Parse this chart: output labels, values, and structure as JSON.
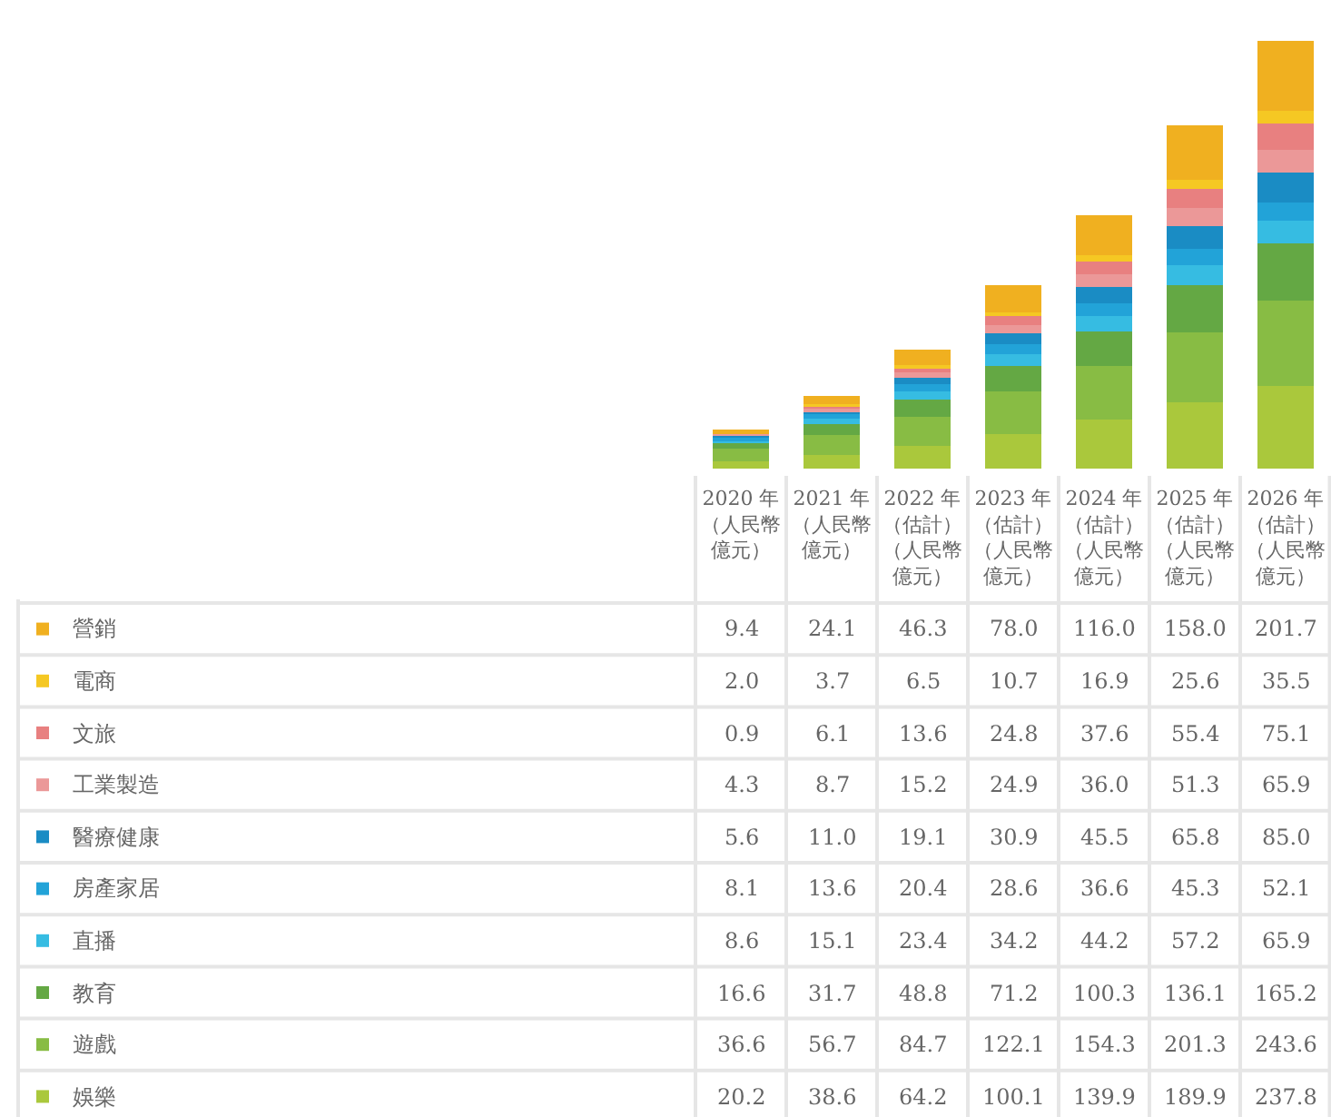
{
  "chart_data": {
    "type": "bar",
    "stacked": true,
    "legend": "bottom left",
    "tick_labels": "x",
    "categories": [
      "2020 年（人民幣億元）",
      "2021 年（人民幣億元）",
      "2022 年（估計）（人民幣億元）",
      "2023 年（估計）（人民幣億元）",
      "2024 年（估計）（人民幣億元）",
      "2025 年（估計）（人民幣億元）",
      "2026 年（估計）（人民幣億元）"
    ],
    "series": [
      {
        "name": "娛樂",
        "color": "#aac83c",
        "values": [
          20.2,
          38.6,
          64.2,
          100.1,
          139.9,
          189.9,
          237.8
        ],
        "value_labels": [
          "20.2",
          "38.6",
          "64.2",
          "100.1",
          "139.9",
          "189.9",
          "237.8"
        ]
      },
      {
        "name": "遊戲",
        "color": "#88bc44",
        "values": [
          36.6,
          56.7,
          84.7,
          122.1,
          154.3,
          201.3,
          243.6
        ],
        "value_labels": [
          "36.6",
          "56.7",
          "84.7",
          "122.1",
          "154.3",
          "201.3",
          "243.6"
        ]
      },
      {
        "name": "教育",
        "color": "#64a844",
        "values": [
          16.6,
          31.7,
          48.8,
          71.2,
          100.3,
          136.1,
          165.2
        ],
        "value_labels": [
          "16.6",
          "31.7",
          "48.8",
          "71.2",
          "100.3",
          "136.1",
          "165.2"
        ]
      },
      {
        "name": "直播",
        "color": "#36bce2",
        "values": [
          8.6,
          15.1,
          23.4,
          34.2,
          44.2,
          57.2,
          65.9
        ],
        "value_labels": [
          "8.6",
          "15.1",
          "23.4",
          "34.2",
          "44.2",
          "57.2",
          "65.9"
        ]
      },
      {
        "name": "房產家居",
        "color": "#22a3d8",
        "values": [
          8.1,
          13.6,
          20.4,
          28.6,
          36.6,
          45.3,
          52.1
        ],
        "value_labels": [
          "8.1",
          "13.6",
          "20.4",
          "28.6",
          "36.6",
          "45.3",
          "52.1"
        ]
      },
      {
        "name": "醫療健康",
        "color": "#1a8cc4",
        "values": [
          5.6,
          11.0,
          19.1,
          30.9,
          45.5,
          65.8,
          85.0
        ],
        "value_labels": [
          "5.6",
          "11.0",
          "19.1",
          "30.9",
          "45.5",
          "65.8",
          "85.0"
        ]
      },
      {
        "name": "工業製造",
        "color": "#eb9898",
        "values": [
          4.3,
          8.7,
          15.2,
          24.9,
          36.0,
          51.3,
          65.9
        ],
        "value_labels": [
          "4.3",
          "8.7",
          "15.2",
          "24.9",
          "36.0",
          "51.3",
          "65.9"
        ]
      },
      {
        "name": "文旅",
        "color": "#e88080",
        "values": [
          0.9,
          6.1,
          13.6,
          24.8,
          37.6,
          55.4,
          75.1
        ],
        "value_labels": [
          "0.9",
          "6.1",
          "13.6",
          "24.8",
          "37.6",
          "55.4",
          "75.1"
        ]
      },
      {
        "name": "電商",
        "color": "#f5c823",
        "values": [
          2.0,
          3.7,
          6.5,
          10.7,
          16.9,
          25.6,
          35.5
        ],
        "value_labels": [
          "2.0",
          "3.7",
          "6.5",
          "10.7",
          "16.9",
          "25.6",
          "35.5"
        ]
      },
      {
        "name": "營銷",
        "color": "#f0b020",
        "values": [
          9.4,
          24.1,
          46.3,
          78.0,
          116.0,
          158.0,
          201.7
        ],
        "value_labels": [
          "9.4",
          "24.1",
          "46.3",
          "78.0",
          "116.0",
          "158.0",
          "201.7"
        ]
      }
    ]
  }
}
